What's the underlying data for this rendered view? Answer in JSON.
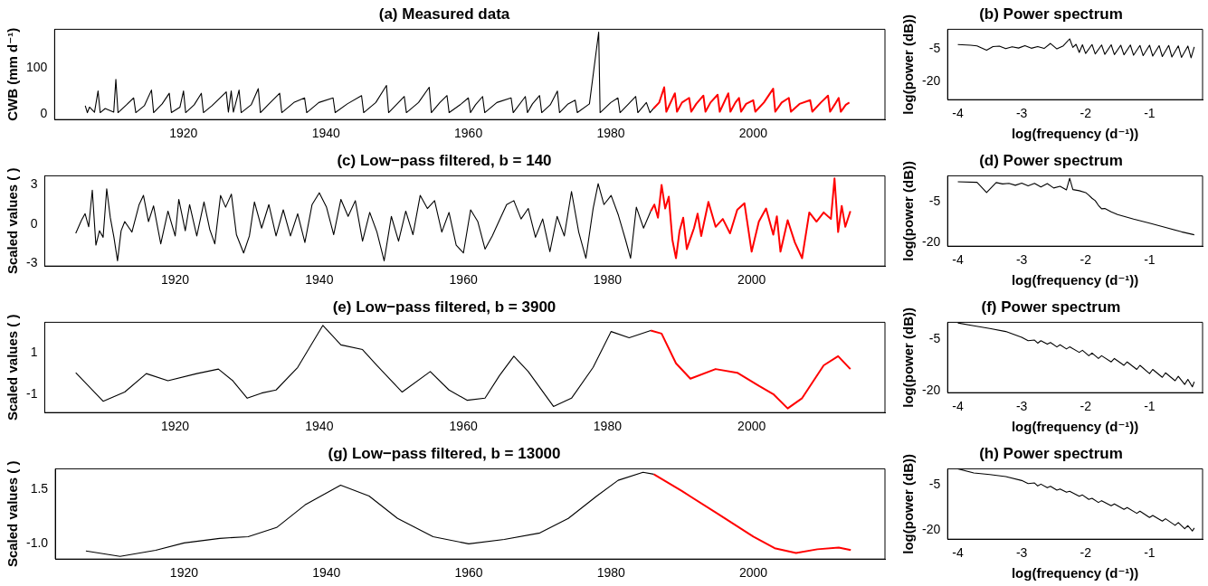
{
  "chart_data": [
    {
      "type": "line",
      "title": "(a) Measured data",
      "ylabel": "CWB (mm d⁻¹)",
      "xlim": [
        1901.9,
        2018.5
      ],
      "xticks": [
        1920,
        1940,
        1960,
        1980,
        2000
      ],
      "ylim": [
        -12,
        184
      ],
      "yticks": [
        0,
        100
      ],
      "grid": false,
      "legend": false,
      "marker": "none",
      "line_style": "solid",
      "series": [
        {
          "color": "#000000",
          "x": [
            1906.2,
            1906.5,
            1906.8,
            1907.5,
            1908,
            1908.3,
            1909,
            1910.2,
            1910.5,
            1910.8,
            1912,
            1913,
            1913.3,
            1914.5,
            1915.5,
            1915.8,
            1917,
            1918,
            1918.3,
            1919.5,
            1920,
            1920.3,
            1921.5,
            1922.5,
            1922.8,
            1924,
            1926,
            1926.3,
            1926.7,
            1927,
            1927.3,
            1927.8,
            1928.1,
            1929.5,
            1930.5,
            1930.8,
            1932,
            1933.5,
            1933.8,
            1935.5,
            1937,
            1937.3,
            1939,
            1941,
            1941.3,
            1943,
            1945,
            1945.3,
            1947,
            1948.5,
            1948.8,
            1950,
            1951,
            1951.3,
            1953,
            1954.5,
            1954.8,
            1956,
            1957,
            1957.3,
            1959,
            1960,
            1960.3,
            1961,
            1962,
            1962.3,
            1964,
            1966,
            1966.3,
            1968,
            1968.3,
            1969,
            1970,
            1970.3,
            1971.5,
            1972.5,
            1972.8,
            1974,
            1975,
            1975.3,
            1977,
            1978.3,
            1978.5,
            1980,
            1981,
            1981.3,
            1982.5,
            1983.5,
            1983.8,
            1985,
            1985.5,
            1986
          ],
          "values": [
            18,
            3,
            15,
            4,
            50,
            3,
            12,
            4,
            75,
            3,
            20,
            35,
            3,
            18,
            52,
            3,
            22,
            45,
            3,
            15,
            50,
            3,
            20,
            45,
            3,
            18,
            48,
            4,
            50,
            4,
            22,
            52,
            3,
            20,
            55,
            3,
            22,
            45,
            3,
            25,
            35,
            3,
            25,
            35,
            3,
            22,
            40,
            3,
            25,
            62,
            3,
            22,
            38,
            3,
            25,
            58,
            3,
            25,
            40,
            3,
            22,
            35,
            3,
            20,
            38,
            3,
            25,
            35,
            3,
            38,
            3,
            22,
            40,
            3,
            20,
            50,
            3,
            22,
            30,
            3,
            22,
            178,
            3,
            25,
            35,
            3,
            22,
            38,
            3,
            25,
            3,
            12
          ]
        },
        {
          "color": "#ff0000",
          "x": [
            1986,
            1986.8,
            1987.5,
            1987.8,
            1989,
            1989.3,
            1990,
            1991,
            1991.3,
            1992,
            1993,
            1993.3,
            1994,
            1995,
            1995.3,
            1996.5,
            1996.8,
            1997.5,
            1998,
            1998.3,
            1999,
            2000,
            2000.3,
            2001.5,
            2002.8,
            2003.1,
            2004,
            2005,
            2005.3,
            2006.5,
            2008,
            2008.3,
            2009.5,
            2010.5,
            2010.8,
            2011.5,
            2012,
            2012.3,
            2013,
            2013.5
          ],
          "values": [
            12,
            25,
            58,
            5,
            45,
            5,
            25,
            35,
            5,
            22,
            40,
            5,
            25,
            42,
            5,
            45,
            5,
            25,
            35,
            5,
            22,
            30,
            5,
            25,
            55,
            5,
            25,
            35,
            5,
            22,
            30,
            5,
            25,
            40,
            5,
            22,
            35,
            5,
            20,
            25
          ]
        }
      ]
    },
    {
      "type": "line",
      "title": "(b) Power spectrum",
      "xlabel": "log(frequency (d⁻¹))",
      "ylabel": "log(power (dB))",
      "xlim": [
        -4.16,
        -0.17
      ],
      "xticks": [
        -4,
        -3,
        -2,
        -1
      ],
      "ylim": [
        -28.2,
        4.1
      ],
      "yticks": [
        -5,
        -20
      ],
      "grid": false,
      "legend": false,
      "marker": "none",
      "line_style": "solid",
      "series": [
        {
          "color": "#000000",
          "x": [
            -4,
            -3.8,
            -3.7,
            -3.55,
            -3.45,
            -3.35,
            -3.25,
            -3.15,
            -3.05,
            -2.95,
            -2.85,
            -2.75,
            -2.65,
            -2.55,
            -2.45,
            -2.35,
            -2.25,
            -2.2,
            -2.15,
            -2.1,
            -2.05,
            -2,
            -1.9,
            -1.85,
            -1.75,
            -1.7,
            -1.6,
            -1.55,
            -1.45,
            -1.4,
            -1.3,
            -1.25,
            -1.15,
            -1.1,
            -1,
            -0.95,
            -0.85,
            -0.8,
            -0.7,
            -0.65,
            -0.55,
            -0.5,
            -0.4,
            -0.35,
            -0.3
          ],
          "values": [
            -2.9,
            -3.2,
            -3.5,
            -5.5,
            -3.8,
            -3.6,
            -4.8,
            -3.9,
            -4.5,
            -3.4,
            -4.6,
            -3.8,
            -4.7,
            -2.4,
            -4.9,
            -3.5,
            -0.3,
            -4.2,
            -2.8,
            -6.5,
            -3.0,
            -7.0,
            -2.9,
            -7.2,
            -3.1,
            -7.4,
            -3.0,
            -7.5,
            -3.2,
            -7.6,
            -3.1,
            -7.8,
            -3.3,
            -8.0,
            -3.2,
            -8.2,
            -3.4,
            -8.4,
            -3.3,
            -8.6,
            -3.5,
            -8.8,
            -3.6,
            -9.0,
            -4.0
          ]
        }
      ]
    },
    {
      "type": "line",
      "title": "(c) Low−pass filtered, b = 140",
      "ylabel": "Scaled values ( )",
      "xlim": [
        1901.9,
        2018.5
      ],
      "xticks": [
        1920,
        1940,
        1960,
        1980,
        2000
      ],
      "ylim": [
        -3.2,
        3.7
      ],
      "yticks": [
        -3,
        0,
        3
      ],
      "grid": false,
      "legend": false,
      "marker": "none",
      "line_style": "solid",
      "series": [
        {
          "color": "#000000",
          "x": [
            1906.2,
            1907,
            1907.5,
            1908,
            1908.5,
            1909,
            1909.5,
            1910,
            1910.5,
            1911,
            1911.5,
            1912,
            1912.5,
            1913,
            1914,
            1915,
            1915.6,
            1916.3,
            1917,
            1918,
            1919,
            1920,
            1920.5,
            1921.4,
            1922,
            1923,
            1924,
            1924.8,
            1925.5,
            1926.3,
            1927,
            1927.8,
            1928.5,
            1929.5,
            1930.3,
            1931,
            1932,
            1933,
            1934,
            1935,
            1936,
            1937,
            1938,
            1939,
            1940,
            1941,
            1942,
            1943,
            1944,
            1945,
            1946,
            1947,
            1948,
            1949,
            1950,
            1951,
            1952,
            1953,
            1954,
            1955,
            1956,
            1957,
            1958,
            1959,
            1960,
            1961,
            1962,
            1963,
            1964,
            1965,
            1966,
            1967,
            1968,
            1969,
            1970,
            1971,
            1972,
            1973,
            1974,
            1975,
            1976,
            1977,
            1978,
            1978.7,
            1979.5,
            1980.5,
            1981.5,
            1982.5,
            1983.2,
            1984,
            1985,
            1986
          ],
          "values": [
            -0.7,
            0.3,
            0.8,
            -0.2,
            2.6,
            -1.6,
            -0.5,
            -1,
            2.7,
            0.5,
            -1,
            -2.8,
            -0.5,
            0.2,
            -0.6,
            1.5,
            2.2,
            0.2,
            1.4,
            -1.5,
            1,
            -0.9,
            1.9,
            -0.5,
            1.5,
            -0.9,
            1.7,
            -0.4,
            -1.5,
            2.2,
            1.3,
            2.3,
            -0.8,
            -2.2,
            -0.9,
            1.7,
            -0.3,
            1.5,
            -0.9,
            1.1,
            -0.9,
            0.8,
            -1.4,
            1.5,
            2.4,
            1.3,
            -0.8,
            1.9,
            0.6,
            1.8,
            -1.3,
            0.9,
            -0.6,
            -2.8,
            0.6,
            -1.3,
            1.0,
            -0.8,
            2.2,
            1.2,
            1.8,
            -0.6,
            0.9,
            -1.6,
            -2.2,
            1.1,
            0.2,
            -1.9,
            -0.9,
            0.3,
            1.5,
            1.8,
            0.4,
            1.2,
            -1.0,
            0.4,
            -2.1,
            0.6,
            -0.9,
            2.5,
            -0.6,
            -2.6,
            1.2,
            3.1,
            1.5,
            2.2,
            0.7,
            -1.2,
            -2.6,
            1.3,
            -0.3,
            1.0
          ]
        },
        {
          "color": "#ff0000",
          "x": [
            1986,
            1986.5,
            1987,
            1987.5,
            1988,
            1988.5,
            1989,
            1989.5,
            1990,
            1990.5,
            1991,
            1992,
            1992.5,
            1993,
            1994,
            1995,
            1996,
            1997,
            1998,
            1999,
            2000,
            2001,
            2002,
            2003,
            2003.5,
            2004,
            2005,
            2006,
            2007,
            2008,
            2009,
            2010,
            2011,
            2011.5,
            2012,
            2012.5,
            2013,
            2013.7
          ],
          "values": [
            1.0,
            1.5,
            0.5,
            3.0,
            1.2,
            2.1,
            -1.2,
            -2.6,
            -0.5,
            0.5,
            -1.9,
            -0.3,
            0.8,
            -0.9,
            1.7,
            -0.2,
            0.4,
            -0.7,
            1.1,
            1.6,
            -2.1,
            0.2,
            1.2,
            -0.8,
            0.6,
            -2.1,
            0.3,
            -1.4,
            -2.6,
            0.9,
            0.2,
            0.9,
            0.4,
            3.5,
            -0.6,
            1.4,
            -0.2,
            1.0
          ]
        }
      ]
    },
    {
      "type": "line",
      "title": "(d) Power spectrum",
      "xlabel": "log(frequency (d⁻¹))",
      "ylabel": "log(power (dB))",
      "xlim": [
        -4.16,
        -0.17
      ],
      "xticks": [
        -4,
        -3,
        -2,
        -1
      ],
      "ylim": [
        -21.3,
        4.7
      ],
      "yticks": [
        -5,
        -20
      ],
      "grid": false,
      "legend": false,
      "marker": "none",
      "line_style": "solid",
      "series": [
        {
          "color": "#000000",
          "x": [
            -4,
            -3.7,
            -3.55,
            -3.4,
            -3.3,
            -3.2,
            -3.1,
            -3,
            -2.9,
            -2.8,
            -2.7,
            -2.6,
            -2.5,
            -2.4,
            -2.3,
            -2.25,
            -2.2,
            -2.1,
            -2,
            -1.95,
            -1.9,
            -1.85,
            -1.8,
            -1.75,
            -1.7,
            -1.6,
            -1.5,
            -1.25,
            -1,
            -0.75,
            -0.5,
            -0.3
          ],
          "values": [
            2.5,
            2.3,
            -1.5,
            2.2,
            1.7,
            1.9,
            1.2,
            2.0,
            1.0,
            1.9,
            0.6,
            1.8,
            0.2,
            0.8,
            -0.5,
            3.8,
            -0.4,
            -0.8,
            -1.5,
            -2.5,
            -3.6,
            -4.5,
            -6.2,
            -7.5,
            -7.4,
            -8.6,
            -9.6,
            -11.3,
            -12.8,
            -14.4,
            -16,
            -17.1
          ]
        }
      ]
    },
    {
      "type": "line",
      "title": "(e) Low−pass filtered, b = 3900",
      "ylabel": "Scaled values ( )",
      "xlim": [
        1901.9,
        2018.5
      ],
      "xticks": [
        1920,
        1940,
        1960,
        1980,
        2000
      ],
      "ylim": [
        -1.9,
        2.5
      ],
      "yticks": [
        -1,
        1
      ],
      "grid": false,
      "legend": false,
      "marker": "none",
      "line_style": "solid",
      "series": [
        {
          "color": "#000000",
          "x": [
            1906.2,
            1910,
            1913,
            1916,
            1919,
            1923,
            1926,
            1928,
            1930,
            1932,
            1934,
            1937,
            1940.5,
            1943,
            1946,
            1948,
            1951.5,
            1955.4,
            1958,
            1960.5,
            1963,
            1965,
            1967,
            1969,
            1972.5,
            1975,
            1978,
            1980.5,
            1983,
            1986
          ],
          "values": [
            0.04,
            -1.35,
            -0.9,
            0,
            -0.35,
            0,
            0.22,
            -0.35,
            -1.2,
            -0.95,
            -0.8,
            0.3,
            2.35,
            1.4,
            1.17,
            0.4,
            -0.9,
            0.1,
            -0.8,
            -1.3,
            -1.2,
            -0.1,
            0.85,
            0.1,
            -1.6,
            -1.2,
            0.3,
            2.05,
            1.75,
            2.1
          ]
        },
        {
          "color": "#ff0000",
          "x": [
            1986,
            1987.5,
            1989.5,
            1991.5,
            1995,
            1998,
            2001,
            2003,
            2005,
            2007,
            2010,
            2012,
            2013.7
          ],
          "values": [
            2.1,
            1.95,
            0.5,
            -0.25,
            0.22,
            0.04,
            -0.6,
            -1.0,
            -1.7,
            -1.2,
            0.4,
            0.85,
            0.22
          ]
        }
      ]
    },
    {
      "type": "line",
      "title": "(f) Power spectrum",
      "xlabel": "log(frequency (d⁻¹))",
      "ylabel": "log(power (dB))",
      "xlim": [
        -4.16,
        -0.17
      ],
      "xticks": [
        -4,
        -3,
        -2,
        -1
      ],
      "ylim": [
        -20.6,
        0
      ],
      "yticks": [
        -5,
        -20
      ],
      "grid": false,
      "legend": false,
      "marker": "none",
      "line_style": "solid",
      "series": [
        {
          "color": "#000000",
          "x": [
            -4,
            -3.75,
            -3.5,
            -3.25,
            -3,
            -2.9,
            -2.8,
            -2.75,
            -2.7,
            -2.6,
            -2.55,
            -2.45,
            -2.4,
            -2.3,
            -2.25,
            -2.1,
            -2.05,
            -1.95,
            -1.9,
            -1.8,
            -1.75,
            -1.6,
            -1.55,
            -1.4,
            -1.35,
            -1.2,
            -1.15,
            -1,
            -0.95,
            -0.8,
            -0.75,
            -0.6,
            -0.55,
            -0.45,
            -0.4,
            -0.33,
            -0.3
          ],
          "values": [
            -0.2,
            -1.0,
            -1.8,
            -2.7,
            -4.4,
            -5.4,
            -5.2,
            -6.1,
            -5.4,
            -6.4,
            -5.9,
            -7.2,
            -6.6,
            -7.8,
            -7.2,
            -8.8,
            -8.2,
            -9.8,
            -9.0,
            -10.6,
            -9.8,
            -11.6,
            -10.6,
            -12.6,
            -11.6,
            -13.8,
            -12.6,
            -15.0,
            -13.8,
            -16.1,
            -14.8,
            -17.1,
            -15.8,
            -18.2,
            -16.7,
            -18.9,
            -17.4
          ]
        }
      ]
    },
    {
      "type": "line",
      "title": "(g) Low−pass filtered, b = 13000",
      "ylabel": "Scaled values ( )",
      "xlim": [
        1901.9,
        2018.5
      ],
      "xticks": [
        1920,
        1940,
        1960,
        1980,
        2000
      ],
      "ylim": [
        -1.7,
        2.45
      ],
      "yticks": [
        {
          "value": -1,
          "label": "-1.0"
        },
        1.5
      ],
      "grid": false,
      "legend": false,
      "marker": "none",
      "line_style": "solid",
      "series": [
        {
          "color": "#000000",
          "x": [
            1906.2,
            1911,
            1916,
            1920,
            1925,
            1929,
            1933,
            1937,
            1942,
            1946,
            1950,
            1955,
            1960,
            1965,
            1970,
            1974,
            1978,
            1981,
            1984.5,
            1986
          ],
          "values": [
            -1.33,
            -1.58,
            -1.3,
            -0.96,
            -0.75,
            -0.67,
            -0.25,
            0.79,
            1.7,
            1.2,
            0.17,
            -0.67,
            -1.0,
            -0.8,
            -0.5,
            0.17,
            1.2,
            1.92,
            2.29,
            2.2
          ]
        },
        {
          "color": "#ff0000",
          "x": [
            1986,
            1990,
            1995,
            2000,
            2003,
            2006,
            2009,
            2012,
            2013.7
          ],
          "values": [
            2.2,
            1.42,
            0.38,
            -0.67,
            -1.2,
            -1.42,
            -1.25,
            -1.17,
            -1.29
          ]
        }
      ]
    },
    {
      "type": "line",
      "title": "(h) Power spectrum",
      "xlabel": "log(frequency (d⁻¹))",
      "ylabel": "log(power (dB))",
      "xlim": [
        -4.16,
        -0.17
      ],
      "xticks": [
        -4,
        -3,
        -2,
        -1
      ],
      "ylim": [
        -23.1,
        0.3
      ],
      "yticks": [
        -5,
        -20
      ],
      "grid": false,
      "legend": false,
      "marker": "none",
      "line_style": "solid",
      "series": [
        {
          "color": "#000000",
          "x": [
            -4,
            -3.75,
            -3.5,
            -3.25,
            -3,
            -2.9,
            -2.8,
            -2.75,
            -2.7,
            -2.6,
            -2.55,
            -2.45,
            -2.4,
            -2.3,
            -2.25,
            -2.1,
            -2.05,
            -1.95,
            -1.9,
            -1.8,
            -1.75,
            -1.6,
            -1.55,
            -1.4,
            -1.35,
            -1.2,
            -1.15,
            -1,
            -0.95,
            -0.8,
            -0.75,
            -0.6,
            -0.55,
            -0.45,
            -0.4,
            -0.33,
            -0.3
          ],
          "values": [
            0.3,
            -1.1,
            -1.6,
            -2.3,
            -3.6,
            -4.6,
            -4.4,
            -5.4,
            -4.8,
            -6.0,
            -5.5,
            -6.8,
            -6.4,
            -7.5,
            -7.2,
            -8.8,
            -8.4,
            -9.9,
            -9.5,
            -10.9,
            -10.3,
            -12.0,
            -11.4,
            -13.2,
            -12.6,
            -14.5,
            -13.8,
            -15.9,
            -15.2,
            -17.1,
            -16.3,
            -18.5,
            -17.6,
            -19.6,
            -18.6,
            -20.4,
            -19.4
          ]
        }
      ]
    }
  ]
}
